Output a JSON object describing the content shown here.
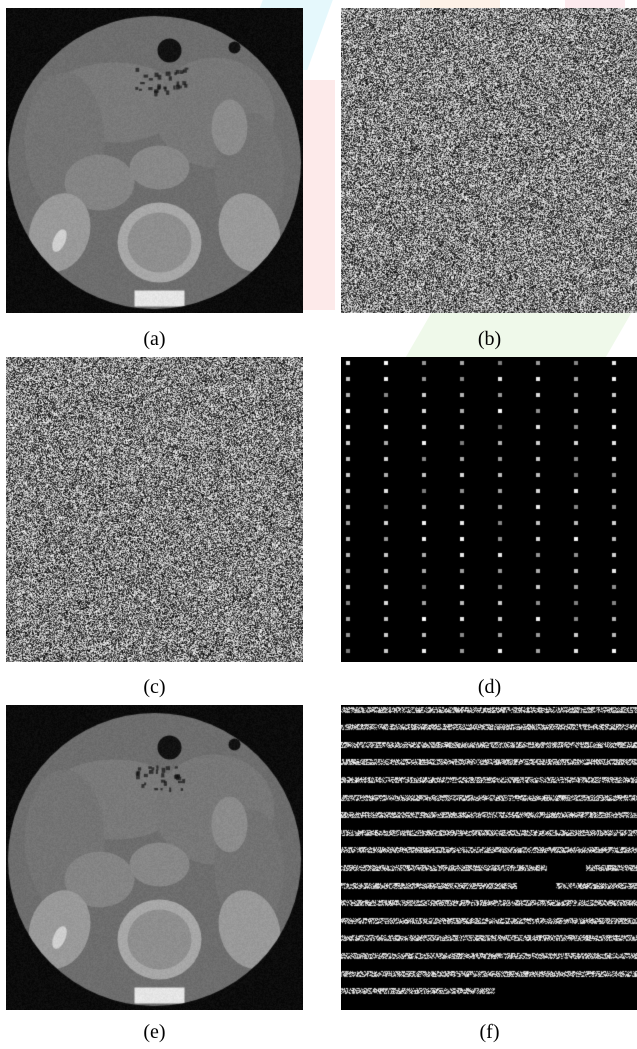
{
  "figure": {
    "captions": [
      "(a)",
      "(b)",
      "(c)",
      "(d)",
      "(e)",
      "(f)"
    ],
    "panels": [
      {
        "id": "a",
        "kind": "ct-scan"
      },
      {
        "id": "b",
        "kind": "noise"
      },
      {
        "id": "c",
        "kind": "noise"
      },
      {
        "id": "d",
        "kind": "dot-grid"
      },
      {
        "id": "e",
        "kind": "ct-scan"
      },
      {
        "id": "f",
        "kind": "striped-noise"
      }
    ]
  }
}
